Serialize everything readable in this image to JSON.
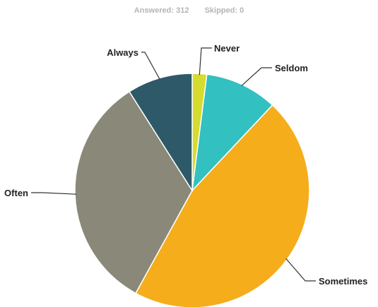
{
  "summary": {
    "answered_label": "Answered:",
    "answered_count": "312",
    "skipped_label": "Skipped:",
    "skipped_count": "0"
  },
  "chart_data": {
    "type": "pie",
    "categories": [
      "Never",
      "Seldom",
      "Sometimes",
      "Often",
      "Always"
    ],
    "values": [
      2.0,
      10.0,
      46.0,
      33.0,
      9.0
    ],
    "unit": "percent of responses (estimated)",
    "colors": [
      "#d5dc2e",
      "#33c0c0",
      "#f5ad1c",
      "#8a8878",
      "#2e5968"
    ],
    "start": "12 o'clock, clockwise",
    "legend": "none (leader-line labels)"
  }
}
